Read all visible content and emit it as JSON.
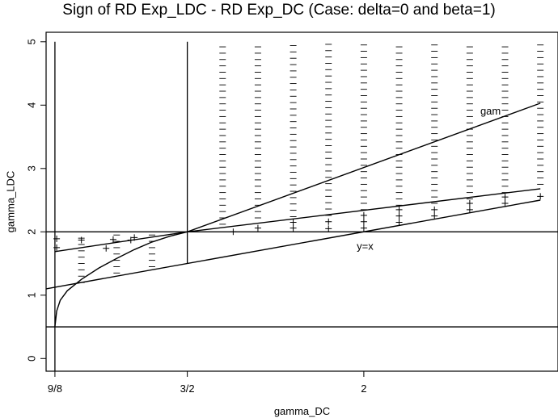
{
  "chart_data": {
    "type": "line",
    "title": "Sign of RD Exp_LDC - RD Exp_DC (Case: delta=0 and beta=1)",
    "xlabel": "gamma_DC",
    "ylabel": "gamma_LDC",
    "xlim": [
      1.1,
      2.55
    ],
    "ylim": [
      -0.2,
      5.15
    ],
    "x_ticks": [
      {
        "value": 1.125,
        "label": "9/8"
      },
      {
        "value": 1.5,
        "label": "3/2"
      },
      {
        "value": 2.0,
        "label": "2"
      }
    ],
    "y_ticks": [
      {
        "value": 0,
        "label": "0"
      },
      {
        "value": 1,
        "label": "1"
      },
      {
        "value": 2,
        "label": "2"
      },
      {
        "value": 3,
        "label": "3"
      },
      {
        "value": 4,
        "label": "4"
      },
      {
        "value": 5,
        "label": "5"
      }
    ],
    "reference_lines": {
      "vertical_x": [
        1.125,
        1.5
      ],
      "horizontal_y": [
        2.0,
        0.5
      ]
    },
    "vertical_segment_tops": [
      5.0,
      5.0
    ],
    "vertical_segment_bottoms": [
      -0.2,
      1.5
    ],
    "curves": [
      {
        "name": "y=x",
        "points": [
          [
            1.1,
            1.1
          ],
          [
            2.5,
            2.5
          ]
        ]
      },
      {
        "name": "",
        "points": [
          [
            1.125,
            1.6875
          ],
          [
            1.5,
            2.0
          ],
          [
            2.5,
            2.68
          ]
        ]
      },
      {
        "name": "gam",
        "points": [
          [
            1.5,
            2.0
          ],
          [
            2.5,
            4.03
          ]
        ]
      },
      {
        "name": "",
        "points": [
          [
            1.125,
            0.5
          ],
          [
            1.13,
            0.75
          ],
          [
            1.14,
            0.92
          ],
          [
            1.16,
            1.07
          ],
          [
            1.2,
            1.25
          ],
          [
            1.25,
            1.43
          ],
          [
            1.3,
            1.58
          ],
          [
            1.35,
            1.72
          ],
          [
            1.4,
            1.84
          ],
          [
            1.45,
            1.93
          ],
          [
            1.5,
            2.0
          ]
        ]
      }
    ],
    "curve_labels": [
      {
        "text": "y=x",
        "x": 1.98,
        "y": 1.72
      },
      {
        "text": "gam",
        "x": 2.33,
        "y": 3.85
      }
    ],
    "plus_markers": [
      [
        1.13,
        1.89
      ],
      [
        1.13,
        1.75
      ],
      [
        1.2,
        1.87
      ],
      [
        1.27,
        1.74
      ],
      [
        1.29,
        1.88
      ],
      [
        1.34,
        1.87
      ],
      [
        1.35,
        1.91
      ],
      [
        1.63,
        2.0
      ],
      [
        1.7,
        2.06
      ],
      [
        1.8,
        2.15
      ],
      [
        1.8,
        2.06
      ],
      [
        1.9,
        2.16
      ],
      [
        1.9,
        2.05
      ],
      [
        2.0,
        2.26
      ],
      [
        2.0,
        2.16
      ],
      [
        2.0,
        2.06
      ],
      [
        2.1,
        2.35
      ],
      [
        2.1,
        2.25
      ],
      [
        2.1,
        2.15
      ],
      [
        2.2,
        2.35
      ],
      [
        2.2,
        2.25
      ],
      [
        2.3,
        2.45
      ],
      [
        2.3,
        2.35
      ],
      [
        2.4,
        2.55
      ],
      [
        2.4,
        2.45
      ],
      [
        2.5,
        2.56
      ]
    ],
    "minus_columns": [
      {
        "x": 1.2,
        "from": 1.2,
        "to": 1.95
      },
      {
        "x": 1.3,
        "from": 1.35,
        "to": 1.97
      },
      {
        "x": 1.4,
        "from": 1.45,
        "to": 1.98
      },
      {
        "x": 1.6,
        "from": 2.12,
        "to": 5.0
      },
      {
        "x": 1.7,
        "from": 2.22,
        "to": 5.0
      },
      {
        "x": 1.8,
        "from": 2.24,
        "to": 5.0
      },
      {
        "x": 1.9,
        "from": 2.26,
        "to": 5.0
      },
      {
        "x": 2.0,
        "from": 2.35,
        "to": 5.0
      },
      {
        "x": 2.1,
        "from": 2.42,
        "to": 5.0
      },
      {
        "x": 2.2,
        "from": 2.45,
        "to": 5.0
      },
      {
        "x": 2.3,
        "from": 2.52,
        "to": 5.0
      },
      {
        "x": 2.4,
        "from": 2.62,
        "to": 5.0
      },
      {
        "x": 2.5,
        "from": 2.75,
        "to": 5.0
      }
    ],
    "minus_step": 0.1,
    "grid": false,
    "legend": "none"
  }
}
